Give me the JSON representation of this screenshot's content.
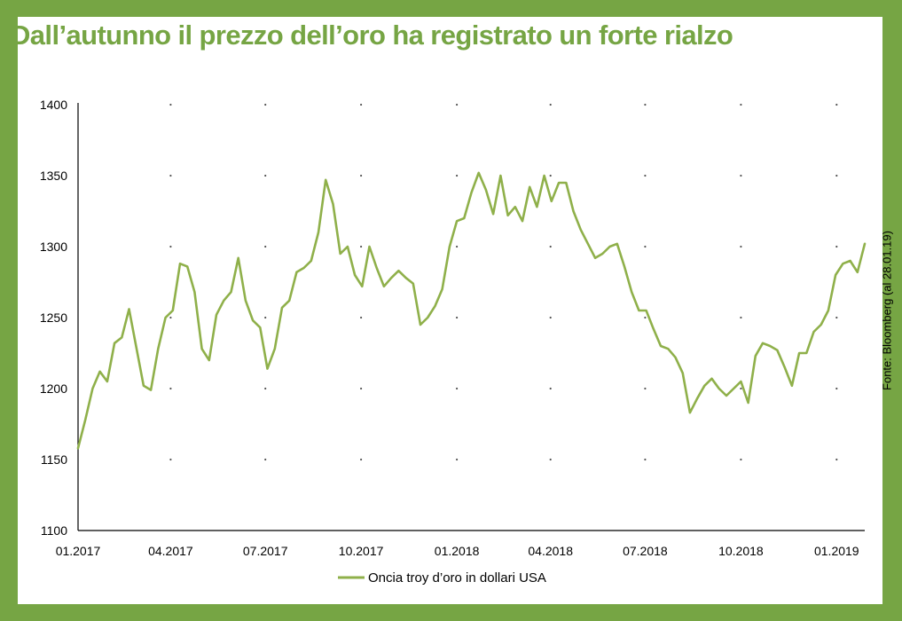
{
  "title": "Dall’autunno il prezzo dell’oro ha registrato un forte rialzo",
  "source": "Fonte: Bloomberg (al 28.01.19)",
  "colors": {
    "background": "#76a544",
    "line": "#8fb04a",
    "title": "#76a544"
  },
  "chart_data": {
    "type": "line",
    "title": "Dall’autunno il prezzo dell’oro ha registrato un forte rialzo",
    "xlabel": "",
    "ylabel": "",
    "ylim": [
      1100,
      1400
    ],
    "yticks": [
      1100,
      1150,
      1200,
      1250,
      1300,
      1350,
      1400
    ],
    "xlim": [
      "2017-01-02",
      "2019-01-28"
    ],
    "xticks": [
      "2017-01-01",
      "2017-04-01",
      "2017-07-01",
      "2017-10-01",
      "2018-01-01",
      "2018-04-01",
      "2018-07-01",
      "2018-10-01",
      "2019-01-01"
    ],
    "xtick_labels": [
      "01.2017",
      "04.2017",
      "07.2017",
      "10.2017",
      "01.2018",
      "04.2018",
      "07.2018",
      "10.2018",
      "01.2019"
    ],
    "grid": "dotted",
    "legend": "bottom-center",
    "series": [
      {
        "name": "Oncia troy d’oro in dollari USA",
        "x": [
          "2017-01-02",
          "2017-01-09",
          "2017-01-16",
          "2017-01-23",
          "2017-01-30",
          "2017-02-06",
          "2017-02-13",
          "2017-02-20",
          "2017-02-27",
          "2017-03-06",
          "2017-03-13",
          "2017-03-20",
          "2017-03-27",
          "2017-04-03",
          "2017-04-10",
          "2017-04-17",
          "2017-04-24",
          "2017-05-01",
          "2017-05-08",
          "2017-05-15",
          "2017-05-22",
          "2017-05-29",
          "2017-06-05",
          "2017-06-12",
          "2017-06-19",
          "2017-06-26",
          "2017-07-03",
          "2017-07-10",
          "2017-07-17",
          "2017-07-24",
          "2017-07-31",
          "2017-08-07",
          "2017-08-14",
          "2017-08-21",
          "2017-08-28",
          "2017-09-04",
          "2017-09-11",
          "2017-09-18",
          "2017-09-25",
          "2017-10-02",
          "2017-10-09",
          "2017-10-16",
          "2017-10-23",
          "2017-10-30",
          "2017-11-06",
          "2017-11-13",
          "2017-11-20",
          "2017-11-27",
          "2017-12-04",
          "2017-12-11",
          "2017-12-18",
          "2017-12-25",
          "2018-01-01",
          "2018-01-08",
          "2018-01-15",
          "2018-01-22",
          "2018-01-29",
          "2018-02-05",
          "2018-02-12",
          "2018-02-19",
          "2018-02-26",
          "2018-03-05",
          "2018-03-12",
          "2018-03-19",
          "2018-03-26",
          "2018-04-02",
          "2018-04-09",
          "2018-04-16",
          "2018-04-23",
          "2018-04-30",
          "2018-05-07",
          "2018-05-14",
          "2018-05-21",
          "2018-05-28",
          "2018-06-04",
          "2018-06-11",
          "2018-06-18",
          "2018-06-25",
          "2018-07-02",
          "2018-07-09",
          "2018-07-16",
          "2018-07-23",
          "2018-07-30",
          "2018-08-06",
          "2018-08-13",
          "2018-08-20",
          "2018-08-27",
          "2018-09-03",
          "2018-09-10",
          "2018-09-17",
          "2018-09-24",
          "2018-10-01",
          "2018-10-08",
          "2018-10-15",
          "2018-10-22",
          "2018-10-29",
          "2018-11-05",
          "2018-11-12",
          "2018-11-19",
          "2018-11-26",
          "2018-12-03",
          "2018-12-10",
          "2018-12-17",
          "2018-12-24",
          "2018-12-31",
          "2019-01-07",
          "2019-01-14",
          "2019-01-21",
          "2019-01-28"
        ],
        "values": [
          1158,
          1178,
          1200,
          1212,
          1205,
          1232,
          1236,
          1256,
          1229,
          1202,
          1199,
          1228,
          1250,
          1255,
          1288,
          1286,
          1268,
          1228,
          1220,
          1252,
          1262,
          1268,
          1292,
          1262,
          1248,
          1243,
          1214,
          1228,
          1257,
          1262,
          1282,
          1285,
          1290,
          1310,
          1347,
          1330,
          1295,
          1300,
          1280,
          1272,
          1300,
          1285,
          1272,
          1278,
          1283,
          1278,
          1274,
          1245,
          1250,
          1258,
          1270,
          1300,
          1318,
          1320,
          1338,
          1352,
          1340,
          1323,
          1350,
          1322,
          1328,
          1318,
          1342,
          1328,
          1350,
          1332,
          1345,
          1345,
          1325,
          1312,
          1302,
          1292,
          1295,
          1300,
          1302,
          1286,
          1268,
          1255,
          1255,
          1242,
          1230,
          1228,
          1222,
          1211,
          1183,
          1193,
          1202,
          1207,
          1200,
          1195,
          1200,
          1205,
          1190,
          1223,
          1232,
          1230,
          1227,
          1215,
          1202,
          1225,
          1225,
          1240,
          1245,
          1255,
          1280,
          1288,
          1290,
          1282,
          1302
        ]
      }
    ]
  }
}
